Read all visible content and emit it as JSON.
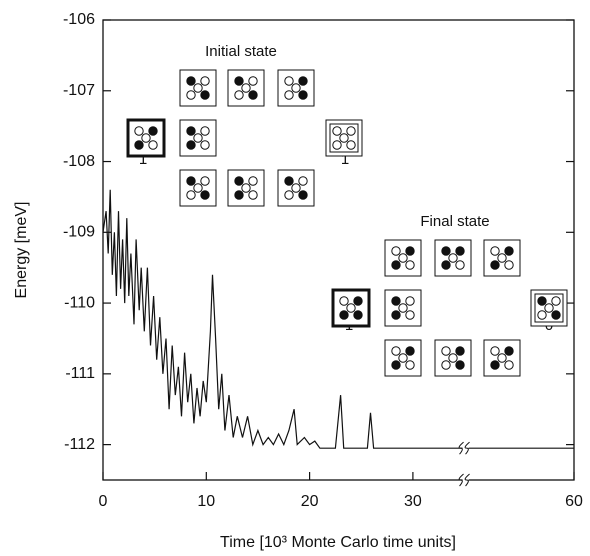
{
  "chart_data": {
    "type": "line",
    "x_label": "Time [10³ Monte Carlo time units]",
    "y_label": "Energy [meV]",
    "xlim": [
      0,
      60
    ],
    "xticks": [
      0,
      10,
      20,
      30,
      60
    ],
    "x_break": 35,
    "ylim": [
      -112.5,
      -106
    ],
    "yticks": [
      -106,
      -107,
      -108,
      -109,
      -110,
      -111,
      -112
    ],
    "series": [
      {
        "color": "#111111",
        "x": [
          0,
          0.3,
          0.5,
          0.7,
          0.9,
          1.1,
          1.3,
          1.5,
          1.7,
          1.9,
          2.1,
          2.3,
          2.5,
          2.7,
          3.0,
          3.2,
          3.5,
          3.7,
          4.0,
          4.3,
          4.6,
          4.9,
          5.2,
          5.5,
          5.8,
          6.1,
          6.4,
          6.7,
          7.0,
          7.3,
          7.6,
          7.9,
          8.2,
          8.5,
          8.8,
          9.1,
          9.4,
          9.7,
          10.0,
          10.4,
          10.6,
          10.9,
          11.2,
          11.5,
          11.8,
          12.2,
          12.6,
          13.0,
          13.5,
          14.0,
          14.5,
          15,
          15.5,
          16,
          16.5,
          17,
          17.5,
          18,
          18.5,
          18.8,
          19.5,
          20,
          20.5,
          21,
          22.5,
          23,
          23.3,
          25.6,
          25.9,
          26.2,
          35,
          60
        ],
        "values": [
          -109.0,
          -108.7,
          -109.3,
          -108.4,
          -109.6,
          -109.0,
          -109.9,
          -108.7,
          -109.8,
          -109.1,
          -110.0,
          -108.8,
          -109.9,
          -109.3,
          -110.3,
          -109.1,
          -110.1,
          -109.5,
          -110.4,
          -109.5,
          -110.6,
          -109.9,
          -110.8,
          -110.2,
          -111.0,
          -110.5,
          -111.5,
          -110.6,
          -111.3,
          -110.9,
          -111.6,
          -110.7,
          -111.4,
          -111.0,
          -111.7,
          -111.2,
          -111.6,
          -111.1,
          -111.4,
          -110.4,
          -109.6,
          -110.5,
          -111.5,
          -111.0,
          -111.8,
          -111.3,
          -111.9,
          -111.6,
          -111.9,
          -111.6,
          -112.0,
          -111.8,
          -112.0,
          -111.9,
          -112.0,
          -111.85,
          -112.0,
          -111.8,
          -111.5,
          -112.0,
          -111.9,
          -112.0,
          -111.95,
          -112.05,
          -112.05,
          -111.3,
          -112.05,
          -112.05,
          -111.55,
          -112.05,
          -112.05,
          -112.05
        ]
      }
    ],
    "annotations": [
      "Initial state",
      "1",
      "1",
      "Final state",
      "1",
      "0"
    ]
  }
}
